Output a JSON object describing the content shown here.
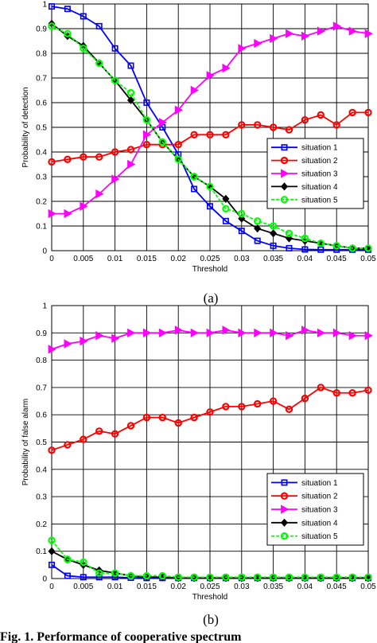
{
  "colors": {
    "situation_1": "#0000ff",
    "situation_2": "#ff0000",
    "situation_3": "#ff00ff",
    "situation_4": "#000000",
    "situation_5": "#00ff00"
  },
  "markers": {
    "situation_1": "square",
    "situation_2": "circle",
    "situation_3": "triangle-right",
    "situation_4": "diamond",
    "situation_5": "circle"
  },
  "chart_data": [
    {
      "type": "line",
      "caption": "(a)",
      "title": "",
      "xlabel": "Threshold",
      "ylabel": "Probability of detection",
      "xlim": [
        0,
        0.05
      ],
      "ylim": [
        0,
        1
      ],
      "grid": true,
      "legend_position": "center-right",
      "x_ticks": [
        "0",
        "0.005",
        "0.01",
        "0.015",
        "0.02",
        "0.025",
        "0.03",
        "0.035",
        "0.04",
        "0.045",
        "0.05"
      ],
      "y_ticks": [
        "0",
        "0.1",
        "0.2",
        "0.3",
        "0.4",
        "0.5",
        "0.6",
        "0.7",
        "0.8",
        "0.9",
        "1"
      ],
      "x": [
        0,
        0.0025,
        0.005,
        0.0075,
        0.01,
        0.0125,
        0.015,
        0.0175,
        0.02,
        0.0225,
        0.025,
        0.0275,
        0.03,
        0.0325,
        0.035,
        0.0375,
        0.04,
        0.0425,
        0.045,
        0.0475,
        0.05
      ],
      "series": [
        {
          "name": "situation 1",
          "values": [
            0.99,
            0.98,
            0.95,
            0.91,
            0.82,
            0.75,
            0.6,
            0.5,
            0.39,
            0.25,
            0.18,
            0.12,
            0.08,
            0.04,
            0.02,
            0.01,
            0.005,
            0.004,
            0.004,
            0.004,
            0.004
          ]
        },
        {
          "name": "situation 2",
          "values": [
            0.36,
            0.37,
            0.38,
            0.38,
            0.4,
            0.41,
            0.43,
            0.43,
            0.43,
            0.47,
            0.47,
            0.47,
            0.51,
            0.51,
            0.5,
            0.49,
            0.53,
            0.55,
            0.51,
            0.56,
            0.56
          ]
        },
        {
          "name": "situation 3",
          "values": [
            0.15,
            0.15,
            0.18,
            0.23,
            0.29,
            0.35,
            0.47,
            0.52,
            0.57,
            0.65,
            0.71,
            0.74,
            0.82,
            0.84,
            0.86,
            0.88,
            0.87,
            0.89,
            0.91,
            0.89,
            0.88
          ]
        },
        {
          "name": "situation 4",
          "values": [
            0.92,
            0.87,
            0.83,
            0.76,
            0.69,
            0.61,
            0.53,
            0.44,
            0.37,
            0.3,
            0.26,
            0.21,
            0.13,
            0.09,
            0.07,
            0.05,
            0.04,
            0.03,
            0.02,
            0.01,
            0.01
          ]
        },
        {
          "name": "situation 5",
          "values": [
            0.91,
            0.88,
            0.82,
            0.76,
            0.69,
            0.64,
            0.53,
            0.44,
            0.37,
            0.3,
            0.26,
            0.17,
            0.15,
            0.12,
            0.1,
            0.07,
            0.05,
            0.03,
            0.02,
            0.01,
            0.01
          ]
        }
      ]
    },
    {
      "type": "line",
      "caption": "(b)",
      "title": "",
      "xlabel": "Threshold",
      "ylabel": "Probability of false alarm",
      "xlim": [
        0,
        0.05
      ],
      "ylim": [
        0,
        1
      ],
      "grid": true,
      "legend_position": "lower-right",
      "x_ticks": [
        "0",
        "0.005",
        "0.01",
        "0.015",
        "0.02",
        "0.025",
        "0.03",
        "0.035",
        "0.04",
        "0.045",
        "0.05"
      ],
      "y_ticks": [
        "0",
        "0.1",
        "0.2",
        "0.3",
        "0.4",
        "0.5",
        "0.6",
        "0.7",
        "0.8",
        "0.9",
        "1"
      ],
      "x": [
        0,
        0.0025,
        0.005,
        0.0075,
        0.01,
        0.0125,
        0.015,
        0.0175,
        0.02,
        0.0225,
        0.025,
        0.0275,
        0.03,
        0.0325,
        0.035,
        0.0375,
        0.04,
        0.0425,
        0.045,
        0.0475,
        0.05
      ],
      "series": [
        {
          "name": "situation 1",
          "values": [
            0.05,
            0.01,
            0.005,
            0.005,
            0.005,
            0.003,
            0.002,
            0.002,
            0.002,
            0.002,
            0.002,
            0.002,
            0.002,
            0.002,
            0.002,
            0.002,
            0.002,
            0.002,
            0.002,
            0.002,
            0.002
          ]
        },
        {
          "name": "situation 2",
          "values": [
            0.47,
            0.49,
            0.51,
            0.54,
            0.53,
            0.56,
            0.59,
            0.59,
            0.57,
            0.59,
            0.61,
            0.63,
            0.63,
            0.64,
            0.65,
            0.62,
            0.66,
            0.7,
            0.68,
            0.68,
            0.69
          ]
        },
        {
          "name": "situation 3",
          "values": [
            0.84,
            0.86,
            0.87,
            0.89,
            0.88,
            0.9,
            0.9,
            0.9,
            0.91,
            0.9,
            0.9,
            0.91,
            0.9,
            0.9,
            0.9,
            0.89,
            0.91,
            0.9,
            0.9,
            0.89,
            0.89
          ]
        },
        {
          "name": "situation 4",
          "values": [
            0.1,
            0.07,
            0.05,
            0.03,
            0.02,
            0.01,
            0.005,
            0.005,
            0.002,
            0.002,
            0.002,
            0.002,
            0.002,
            0.002,
            0.002,
            0.002,
            0.002,
            0.002,
            0.002,
            0.002,
            0.002
          ]
        },
        {
          "name": "situation 5",
          "values": [
            0.14,
            0.07,
            0.06,
            0.02,
            0.02,
            0.01,
            0.01,
            0.01,
            0.005,
            0.005,
            0.005,
            0.005,
            0.005,
            0.005,
            0.005,
            0.005,
            0.005,
            0.005,
            0.005,
            0.005,
            0.005
          ]
        }
      ]
    }
  ],
  "bottom_text": "Fig. 1.   Performance of cooperative spectrum"
}
